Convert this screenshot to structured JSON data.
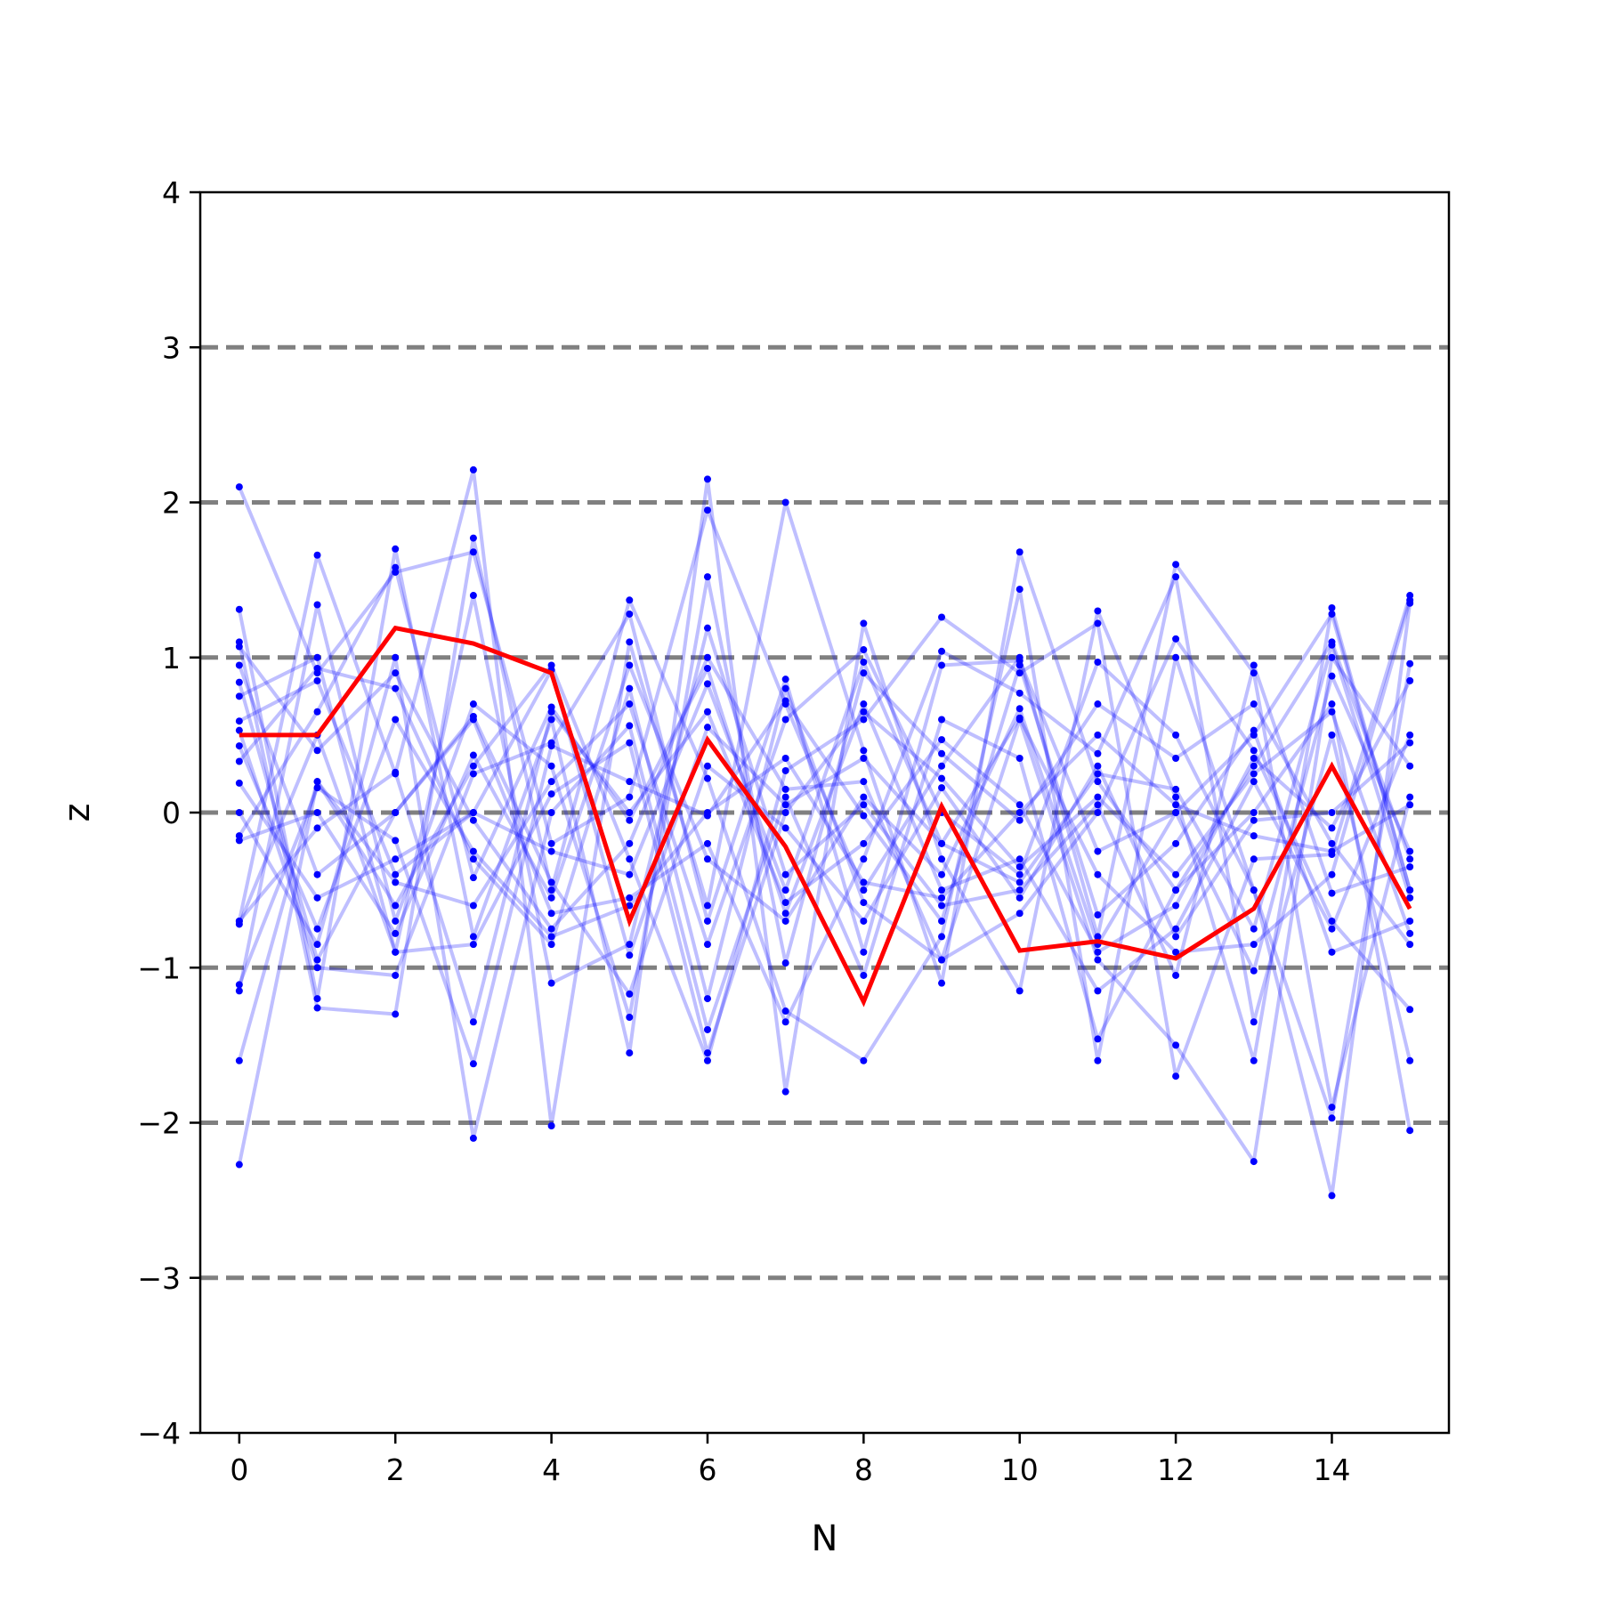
{
  "chart_data": {
    "type": "line",
    "xlabel": "N",
    "ylabel": "z",
    "xlim": [
      -0.5,
      15.5
    ],
    "ylim": [
      -4,
      4
    ],
    "xticks": [
      0,
      2,
      4,
      6,
      8,
      10,
      12,
      14
    ],
    "yticks": [
      -4,
      -3,
      -2,
      -1,
      0,
      1,
      2,
      3,
      4
    ],
    "ytick_labels": [
      "−4",
      "−3",
      "−2",
      "−1",
      "0",
      "1",
      "2",
      "3",
      "4"
    ],
    "hlines": [
      -3,
      -2,
      -1,
      0,
      1,
      2,
      3
    ],
    "grid": false,
    "legend": "none",
    "colors": {
      "samples": "#0000ff",
      "mean": "#ff0000",
      "hlines": "#808080",
      "axes": "#000000"
    },
    "x": [
      0,
      1,
      2,
      3,
      4,
      5,
      6,
      7,
      8,
      9,
      10,
      11,
      12,
      13,
      14,
      15
    ],
    "series": [
      {
        "role": "mean",
        "values": [
          0.5,
          0.5,
          1.19,
          1.09,
          0.9,
          -0.7,
          0.47,
          -0.22,
          -1.22,
          0.04,
          -0.89,
          -0.83,
          -0.94,
          -0.62,
          0.3,
          -0.62
        ]
      },
      {
        "role": "sample",
        "values": [
          2.1,
          0.9,
          1.55,
          1.68,
          -0.2,
          0.1,
          1.95,
          0.7,
          -0.5,
          0.3,
          1.0,
          -0.8,
          1.6,
          0.9,
          -1.9,
          0.1
        ]
      },
      {
        "role": "sample",
        "values": [
          -0.7,
          1.66,
          0.25,
          2.21,
          -2.02,
          1.1,
          -0.6,
          2.0,
          0.4,
          -1.1,
          1.68,
          0.2,
          -0.5,
          0.3,
          1.1,
          -0.3
        ]
      },
      {
        "role": "sample",
        "values": [
          1.31,
          -1.2,
          1.7,
          -0.8,
          0.6,
          -1.55,
          2.15,
          -1.8,
          1.22,
          -0.3,
          -1.15,
          1.3,
          0.1,
          -1.6,
          1.32,
          -0.5
        ]
      },
      {
        "role": "sample",
        "values": [
          -2.27,
          0.2,
          -0.6,
          0.3,
          0.95,
          -0.3,
          -1.6,
          0.27,
          0.6,
          1.26,
          0.9,
          1.22,
          -1.7,
          -0.3,
          -0.27,
          1.4
        ]
      },
      {
        "role": "sample",
        "values": [
          1.1,
          -1.26,
          -1.3,
          1.77,
          -0.5,
          1.37,
          0.22,
          -1.28,
          -1.6,
          -0.8,
          1.44,
          -1.6,
          1.0,
          -0.5,
          -2.47,
          1.35
        ]
      },
      {
        "role": "sample",
        "values": [
          0.33,
          0.93,
          0.8,
          -0.3,
          -0.85,
          0.8,
          -1.2,
          0.8,
          -0.58,
          -0.95,
          0.6,
          -0.95,
          -1.5,
          -2.25,
          1.0,
          0.3
        ]
      },
      {
        "role": "sample",
        "values": [
          -1.15,
          1.34,
          -0.7,
          0.7,
          0.3,
          -1.32,
          1.52,
          -0.97,
          0.9,
          0.38,
          -0.05,
          0.7,
          0.35,
          0.7,
          -0.2,
          -0.85
        ]
      },
      {
        "role": "sample",
        "values": [
          0.0,
          -0.85,
          1.0,
          -2.1,
          0.0,
          0.56,
          -1.4,
          0.1,
          -1.05,
          0.6,
          0.35,
          -1.46,
          -0.5,
          0.0,
          0.7,
          -2.05
        ]
      },
      {
        "role": "sample",
        "values": [
          0.75,
          1.0,
          -0.9,
          1.4,
          -1.1,
          -0.85,
          1.19,
          -0.4,
          0.05,
          -0.6,
          -0.5,
          0.05,
          -1.05,
          0.95,
          -0.52,
          -0.35
        ]
      },
      {
        "role": "sample",
        "values": [
          -1.6,
          0.2,
          -0.45,
          -0.6,
          0.2,
          0.7,
          -0.85,
          0.6,
          1.05,
          0.0,
          -0.4,
          0.97,
          0.5,
          -0.5,
          -1.97,
          0.96
        ]
      },
      {
        "role": "sample",
        "values": [
          0.95,
          -0.4,
          0.0,
          0.6,
          -0.65,
          -0.55,
          -0.2,
          -1.35,
          -0.3,
          1.04,
          0.77,
          0.38,
          1.52,
          -1.35,
          0.5,
          -1.6
        ]
      },
      {
        "role": "sample",
        "values": [
          -0.15,
          0.65,
          1.58,
          -0.42,
          0.68,
          -0.05,
          0.93,
          -0.65,
          0.7,
          -0.5,
          -0.3,
          -1.15,
          -0.75,
          0.2,
          -0.75,
          0.5
        ]
      },
      {
        "role": "sample",
        "values": [
          0.53,
          -1.0,
          -1.05,
          0.25,
          0.45,
          1.28,
          -0.7,
          0.86,
          -0.9,
          0.95,
          0.98,
          -0.25,
          0.0,
          -1.02,
          0.88,
          -0.25
        ]
      },
      {
        "role": "sample",
        "values": [
          1.07,
          0.4,
          0.9,
          -0.05,
          -0.75,
          -0.2,
          1.0,
          0.15,
          0.2,
          -0.95,
          -0.65,
          0.0,
          1.12,
          0.4,
          -0.7,
          -1.27
        ]
      },
      {
        "role": "sample",
        "values": [
          -0.7,
          -0.1,
          0.26,
          -1.35,
          0.65,
          0.0,
          0.65,
          -0.58,
          -0.2,
          0.47,
          0.05,
          -0.9,
          -0.6,
          0.35,
          -0.1,
          0.85
        ]
      },
      {
        "role": "sample",
        "values": [
          0.19,
          -0.55,
          -0.3,
          0.0,
          0.92,
          -0.92,
          0.55,
          0.05,
          0.35,
          -0.2,
          -0.45,
          0.25,
          0.15,
          -0.75,
          1.08,
          -0.55
        ]
      },
      {
        "role": "sample",
        "values": [
          -1.11,
          0.16,
          -0.18,
          -1.62,
          0.43,
          0.2,
          -0.02,
          0.72,
          -0.02,
          -0.7,
          0.95,
          -0.66,
          -0.2,
          0.53,
          -0.9,
          -0.7
        ]
      },
      {
        "role": "sample",
        "values": [
          0.84,
          -0.95,
          0.0,
          0.62,
          -0.45,
          -1.17,
          0.3,
          -0.1,
          -0.7,
          0.16,
          -0.55,
          0.3,
          -0.8,
          -0.05,
          0.0,
          0.45
        ]
      },
      {
        "role": "sample",
        "values": [
          -0.18,
          0.0,
          -0.78,
          0.37,
          -0.55,
          0.95,
          -0.3,
          -0.7,
          0.1,
          -0.4,
          0.67,
          -0.85,
          0.0,
          0.5,
          1.28,
          -0.5
        ]
      },
      {
        "role": "sample",
        "values": [
          0.43,
          -0.75,
          0.6,
          -0.25,
          -0.8,
          -0.6,
          0.0,
          0.35,
          -0.45,
          -0.55,
          0.0,
          0.5,
          0.05,
          -0.15,
          -0.25,
          0.05
        ]
      },
      {
        "role": "sample",
        "values": [
          -0.72,
          0.5,
          -0.9,
          -0.85,
          0.12,
          0.45,
          -1.55,
          0.0,
          0.65,
          0.22,
          -0.35,
          0.1,
          -0.4,
          0.25,
          0.65,
          -0.78
        ]
      },
      {
        "role": "sample",
        "values": [
          0.59,
          0.85,
          -0.4,
          0.0,
          -0.25,
          -0.4,
          0.83,
          -0.5,
          0.97,
          -0.2,
          0.61,
          -0.4,
          -0.9,
          -0.85,
          -0.4,
          1.37
        ]
      }
    ]
  }
}
